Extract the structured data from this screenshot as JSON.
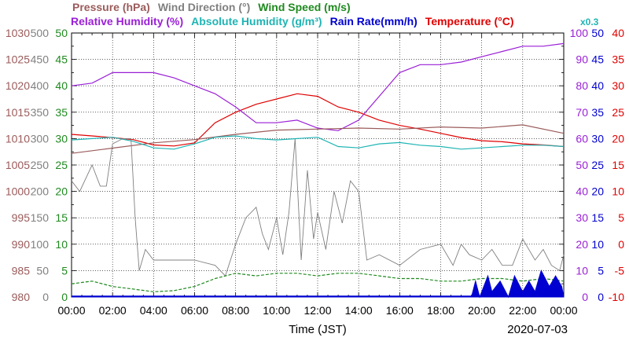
{
  "legend": {
    "row1": [
      {
        "label": "Pressure (hPa)",
        "color": "#9b5b5b"
      },
      {
        "label": "Wind Direction (°)",
        "color": "#808080"
      },
      {
        "label": "Wind Speed (m/s)",
        "color": "#1f8a1f"
      }
    ],
    "row2": [
      {
        "label": "Relative Humidity (%)",
        "color": "#9a1fd6"
      },
      {
        "label": "Absolute Humidity (g/m³)",
        "color": "#1fb4b4"
      },
      {
        "label": "Rain Rate(mm/h)",
        "color": "#0000d0"
      },
      {
        "label": "Temperature (°C)",
        "color": "#e00000"
      }
    ],
    "multiplier": {
      "label": "x0.3",
      "color": "#1fb4b4"
    }
  },
  "xlabel": "Time (JST)",
  "date_label": "2020-07-03",
  "x_ticks": [
    "00:00",
    "02:00",
    "04:00",
    "06:00",
    "08:00",
    "10:00",
    "12:00",
    "14:00",
    "16:00",
    "18:00",
    "20:00",
    "22:00",
    "00:00"
  ],
  "axes": {
    "pressure": {
      "color": "#9b5b5b",
      "ticks": [
        "1030",
        "1025",
        "1020",
        "1015",
        "1010",
        "1005",
        "1000",
        "995",
        "990",
        "985",
        "980"
      ]
    },
    "winddir": {
      "color": "#808080",
      "ticks": [
        "500",
        "450",
        "400",
        "350",
        "300",
        "250",
        "200",
        "150",
        "100",
        "50",
        "0"
      ]
    },
    "windspeed": {
      "color": "#1f8a1f",
      "ticks": [
        "50",
        "45",
        "40",
        "35",
        "30",
        "25",
        "20",
        "15",
        "10",
        "5",
        "0"
      ]
    },
    "humidity": {
      "color": "#9a1fd6",
      "ticks": [
        "100",
        "90",
        "80",
        "70",
        "60",
        "50",
        "40",
        "30",
        "20",
        "10",
        "0"
      ]
    },
    "rain": {
      "color": "#0000d0",
      "ticks": [
        "50",
        "45",
        "40",
        "35",
        "30",
        "25",
        "20",
        "15",
        "10",
        "5",
        "0"
      ]
    },
    "temperature": {
      "color": "#e00000",
      "ticks": [
        "40",
        "35",
        "30",
        "25",
        "20",
        "15",
        "10",
        "5",
        "0",
        "-5",
        "-10"
      ]
    }
  },
  "chart_data": {
    "type": "line",
    "x_unit": "hours",
    "x_range": [
      0,
      24
    ],
    "series": [
      {
        "name": "Temperature (°C)",
        "axis": "temperature",
        "color": "#e00000",
        "x": [
          0,
          1,
          2,
          3,
          4,
          5,
          6,
          7,
          8,
          9,
          10,
          11,
          12,
          13,
          14,
          15,
          16,
          17,
          18,
          19,
          20,
          21,
          22,
          23,
          24
        ],
        "y": [
          20.8,
          20.5,
          20.2,
          19.8,
          18.8,
          18.6,
          19.2,
          23.0,
          25.0,
          26.5,
          27.5,
          28.5,
          28.0,
          26.0,
          25.0,
          23.5,
          22.5,
          21.8,
          21.0,
          20.2,
          19.6,
          19.4,
          19.0,
          18.8,
          18.5
        ]
      },
      {
        "name": "Relative Humidity (%)",
        "axis": "humidity",
        "color": "#9a1fd6",
        "x": [
          0,
          1,
          2,
          3,
          4,
          5,
          6,
          7,
          8,
          9,
          10,
          11,
          12,
          13,
          14,
          15,
          16,
          17,
          18,
          19,
          20,
          21,
          22,
          23,
          24
        ],
        "y": [
          80,
          81,
          85,
          85,
          85,
          83,
          80,
          77,
          72,
          66,
          66,
          67,
          64,
          63,
          67,
          76,
          85,
          88,
          88,
          89,
          91,
          93,
          95,
          95,
          96
        ]
      },
      {
        "name": "Pressure (hPa)",
        "axis": "pressure",
        "color": "#9b5b5b",
        "x": [
          0,
          2,
          4,
          6,
          8,
          10,
          12,
          14,
          16,
          18,
          20,
          22,
          24
        ],
        "y": [
          1007.2,
          1008.2,
          1009.2,
          1009.8,
          1010.8,
          1011.6,
          1011.8,
          1012.0,
          1011.8,
          1012.2,
          1012.0,
          1012.6,
          1011.0
        ]
      },
      {
        "name": "Absolute Humidity (g/m³)",
        "axis": "humidity",
        "color": "#1fb4b4",
        "x": [
          0,
          1,
          2,
          3,
          4,
          5,
          6,
          7,
          8,
          9,
          10,
          11,
          12,
          13,
          14,
          15,
          16,
          17,
          18,
          19,
          20,
          21,
          22,
          23,
          24
        ],
        "y": [
          59.5,
          60.0,
          60.5,
          59.0,
          56.5,
          56.0,
          58.0,
          60.5,
          61.0,
          60.0,
          59.5,
          60.0,
          60.5,
          57.0,
          56.5,
          58.0,
          58.5,
          57.5,
          57.0,
          56.0,
          56.5,
          57.0,
          57.5,
          57.5,
          57.0
        ]
      },
      {
        "name": "Wind Direction (°)",
        "axis": "winddir",
        "color": "#808080",
        "x": [
          0,
          0.4,
          1,
          1.4,
          1.7,
          2,
          2.5,
          2.9,
          3.1,
          3.3,
          3.6,
          4,
          5,
          6,
          7,
          7.5,
          8,
          8.5,
          9,
          9.3,
          9.6,
          10,
          10.3,
          10.6,
          10.9,
          11.2,
          11.5,
          11.8,
          12,
          12.4,
          12.8,
          13.2,
          13.6,
          14,
          14.4,
          15,
          16,
          17,
          18,
          18.6,
          19,
          19.4,
          20,
          20.5,
          21,
          21.5,
          22,
          22.6,
          23,
          23.4,
          23.8,
          24
        ],
        "y": [
          220,
          200,
          250,
          210,
          210,
          290,
          300,
          300,
          150,
          50,
          90,
          70,
          70,
          70,
          60,
          40,
          100,
          150,
          170,
          120,
          90,
          150,
          80,
          160,
          300,
          70,
          240,
          110,
          160,
          90,
          200,
          140,
          220,
          200,
          70,
          80,
          60,
          90,
          100,
          60,
          100,
          80,
          70,
          90,
          60,
          60,
          110,
          70,
          90,
          60,
          50,
          80
        ]
      },
      {
        "name": "Wind Speed (m/s)",
        "axis": "windspeed",
        "color": "#1f8a1f",
        "x": [
          0,
          1,
          2,
          3,
          4,
          5,
          6,
          7,
          8,
          9,
          10,
          11,
          12,
          13,
          14,
          15,
          16,
          17,
          18,
          19,
          20,
          21,
          22,
          23,
          24
        ],
        "y": [
          2.5,
          3.0,
          2.0,
          1.5,
          1.0,
          1.2,
          2.0,
          3.5,
          4.5,
          4.0,
          4.5,
          4.5,
          4.0,
          4.5,
          4.5,
          4.0,
          3.5,
          3.5,
          3.0,
          3.0,
          3.5,
          3.5,
          3.0,
          3.5,
          3.0
        ]
      },
      {
        "name": "Rain Rate(mm/h)",
        "axis": "rain",
        "color": "#0000d0",
        "x": [
          0,
          19.5,
          19.7,
          19.9,
          20.3,
          20.5,
          20.9,
          21.3,
          21.6,
          22.0,
          22.3,
          22.6,
          22.9,
          23.3,
          23.6,
          23.9,
          24
        ],
        "y": [
          0,
          0,
          3,
          0,
          4,
          1,
          3,
          0,
          4,
          1,
          3,
          1,
          5,
          2,
          4,
          2,
          0
        ]
      }
    ]
  }
}
